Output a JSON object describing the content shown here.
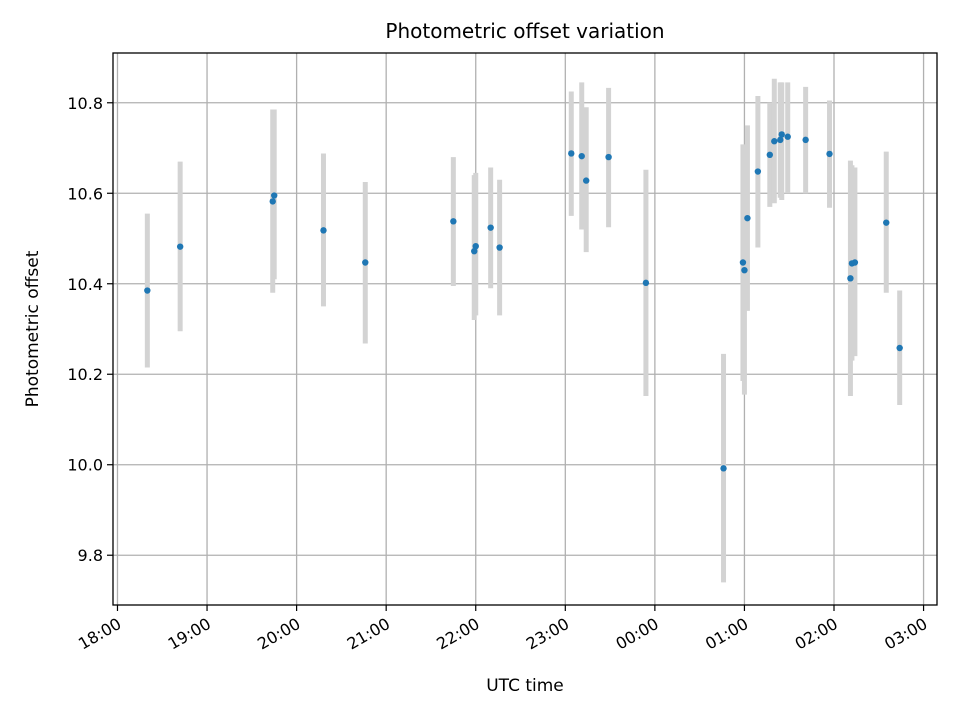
{
  "chart_data": {
    "type": "scatter",
    "title": "Photometric offset variation",
    "xlabel": "UTC time",
    "ylabel": "Photometric offset",
    "grid": true,
    "x_is_time": true,
    "xlim": [
      "17:57",
      "03:09"
    ],
    "ylim": [
      9.69,
      10.91
    ],
    "x_ticks": [
      "18:00",
      "19:00",
      "20:00",
      "21:00",
      "22:00",
      "23:00",
      "00:00",
      "01:00",
      "02:00",
      "03:00"
    ],
    "y_ticks": [
      9.8,
      10.0,
      10.2,
      10.4,
      10.6,
      10.8
    ],
    "colors": {
      "point": "#1f77b4",
      "error_bar": "#d3d3d3",
      "grid": "#b0b0b0"
    },
    "points": [
      {
        "t": "18:20",
        "y": 10.385,
        "lo": 10.215,
        "hi": 10.555
      },
      {
        "t": "18:42",
        "y": 10.482,
        "lo": 10.295,
        "hi": 10.67
      },
      {
        "t": "19:44",
        "y": 10.582,
        "lo": 10.38,
        "hi": 10.785
      },
      {
        "t": "19:45",
        "y": 10.595,
        "lo": 10.41,
        "hi": 10.785
      },
      {
        "t": "20:18",
        "y": 10.518,
        "lo": 10.35,
        "hi": 10.688
      },
      {
        "t": "20:46",
        "y": 10.447,
        "lo": 10.268,
        "hi": 10.625
      },
      {
        "t": "21:45",
        "y": 10.538,
        "lo": 10.395,
        "hi": 10.68
      },
      {
        "t": "21:59",
        "y": 10.472,
        "lo": 10.32,
        "hi": 10.64
      },
      {
        "t": "22:00",
        "y": 10.483,
        "lo": 10.33,
        "hi": 10.645
      },
      {
        "t": "22:10",
        "y": 10.524,
        "lo": 10.39,
        "hi": 10.657
      },
      {
        "t": "22:16",
        "y": 10.48,
        "lo": 10.33,
        "hi": 10.63
      },
      {
        "t": "23:04",
        "y": 10.688,
        "lo": 10.55,
        "hi": 10.825
      },
      {
        "t": "23:11",
        "y": 10.682,
        "lo": 10.52,
        "hi": 10.845
      },
      {
        "t": "23:14",
        "y": 10.628,
        "lo": 10.47,
        "hi": 10.79
      },
      {
        "t": "23:29",
        "y": 10.68,
        "lo": 10.525,
        "hi": 10.833
      },
      {
        "t": "23:54",
        "y": 10.402,
        "lo": 10.152,
        "hi": 10.652
      },
      {
        "t": "00:46",
        "y": 9.992,
        "lo": 9.74,
        "hi": 10.245
      },
      {
        "t": "00:59",
        "y": 10.447,
        "lo": 10.185,
        "hi": 10.708
      },
      {
        "t": "01:00",
        "y": 10.43,
        "lo": 10.155,
        "hi": 10.705
      },
      {
        "t": "01:02",
        "y": 10.545,
        "lo": 10.34,
        "hi": 10.75
      },
      {
        "t": "01:09",
        "y": 10.648,
        "lo": 10.48,
        "hi": 10.815
      },
      {
        "t": "01:17",
        "y": 10.685,
        "lo": 10.57,
        "hi": 10.8
      },
      {
        "t": "01:20",
        "y": 10.715,
        "lo": 10.578,
        "hi": 10.853
      },
      {
        "t": "01:24",
        "y": 10.718,
        "lo": 10.59,
        "hi": 10.845
      },
      {
        "t": "01:25",
        "y": 10.73,
        "lo": 10.585,
        "hi": 10.845
      },
      {
        "t": "01:29",
        "y": 10.725,
        "lo": 10.6,
        "hi": 10.845
      },
      {
        "t": "01:41",
        "y": 10.718,
        "lo": 10.6,
        "hi": 10.835
      },
      {
        "t": "01:57",
        "y": 10.687,
        "lo": 10.568,
        "hi": 10.805
      },
      {
        "t": "02:11",
        "y": 10.412,
        "lo": 10.152,
        "hi": 10.672
      },
      {
        "t": "02:12",
        "y": 10.445,
        "lo": 10.23,
        "hi": 10.662
      },
      {
        "t": "02:14",
        "y": 10.447,
        "lo": 10.24,
        "hi": 10.657
      },
      {
        "t": "02:35",
        "y": 10.535,
        "lo": 10.38,
        "hi": 10.692
      },
      {
        "t": "02:44",
        "y": 10.258,
        "lo": 10.132,
        "hi": 10.385
      }
    ]
  }
}
